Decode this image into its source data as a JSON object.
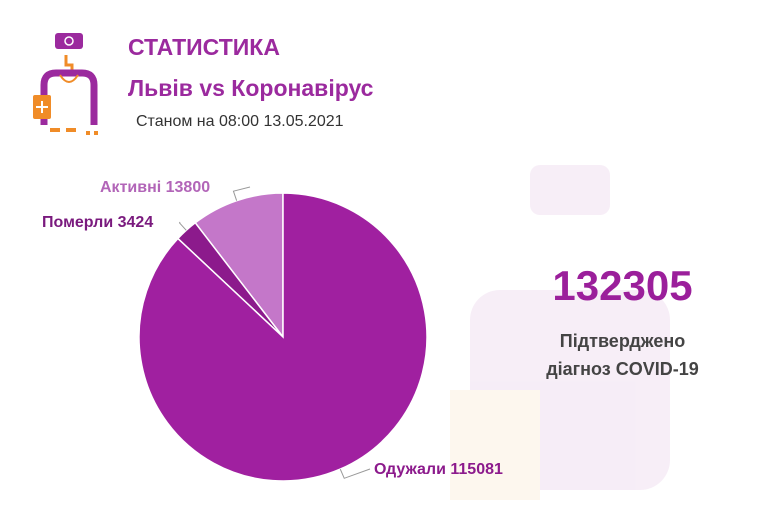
{
  "header": {
    "title": "СТАТИСТИКА",
    "subtitle": "Львів vs Коронавірус",
    "as_of": "Станом на 08:00 13.05.2021"
  },
  "summary": {
    "total": "132305",
    "caption_line1": "Підтверджено",
    "caption_line2": "діагноз COVID-19"
  },
  "chart_data": {
    "type": "pie",
    "categories": [
      "Активні",
      "Померли",
      "Одужали"
    ],
    "values": [
      13800,
      3424,
      115081
    ],
    "labels": [
      "Активні 13800",
      "Померли 3424",
      "Одужали 115081"
    ],
    "colors": [
      "#c477c9",
      "#8c1a8c",
      "#a020a0"
    ],
    "label_colors": [
      "#b265b8",
      "#7a1a7e",
      "#8c1a8c"
    ],
    "start": "12 o'clock, counterclockwise"
  },
  "colors": {
    "brand": "#9b2a9e",
    "accent_orange": "#f08c28"
  }
}
